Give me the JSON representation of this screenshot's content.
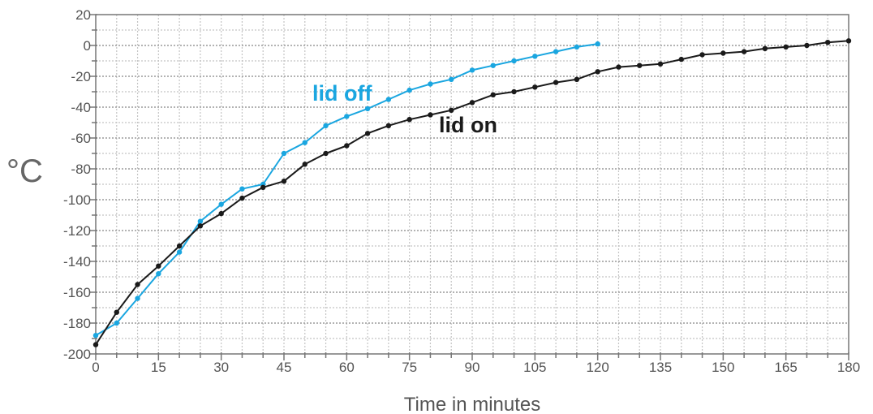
{
  "chart_data": {
    "type": "line",
    "title": "",
    "xlabel": "Time in minutes",
    "ylabel": "°C",
    "xlim": [
      0,
      180
    ],
    "ylim": [
      -200,
      20
    ],
    "x_ticks": [
      0,
      15,
      30,
      45,
      60,
      75,
      90,
      105,
      120,
      135,
      150,
      165,
      180
    ],
    "y_ticks": [
      20,
      0,
      -20,
      -40,
      -60,
      -80,
      -100,
      -120,
      -140,
      -160,
      -180,
      -200
    ],
    "grid": true,
    "series": [
      {
        "name": "lid off",
        "color": "#1aa6e0",
        "x": [
          0,
          5,
          10,
          15,
          20,
          25,
          30,
          35,
          40,
          45,
          50,
          55,
          60,
          65,
          70,
          75,
          80,
          85,
          90,
          95,
          100,
          105,
          110,
          115,
          120
        ],
        "y": [
          -188,
          -180,
          -164,
          -148,
          -134,
          -114,
          -103,
          -93,
          -90,
          -70,
          -63,
          -52,
          -46,
          -41,
          -35,
          -29,
          -25,
          -22,
          -16,
          -13,
          -10,
          -7,
          -4,
          -1,
          1
        ]
      },
      {
        "name": "lid on",
        "color": "#1a1a1a",
        "x": [
          0,
          5,
          10,
          15,
          20,
          25,
          30,
          35,
          40,
          45,
          50,
          55,
          60,
          65,
          70,
          75,
          80,
          85,
          90,
          95,
          100,
          105,
          110,
          115,
          120,
          125,
          130,
          135,
          140,
          145,
          150,
          155,
          160,
          165,
          170,
          175,
          180
        ],
        "y": [
          -194,
          -173,
          -155,
          -143,
          -130,
          -117,
          -109,
          -99,
          -92,
          -88,
          -77,
          -70,
          -65,
          -57,
          -52,
          -48,
          -45,
          -42,
          -37,
          -32,
          -30,
          -27,
          -24,
          -22,
          -17,
          -14,
          -13,
          -12,
          -9,
          -6,
          -5,
          -4,
          -2,
          -1,
          0,
          2,
          3
        ]
      }
    ]
  }
}
